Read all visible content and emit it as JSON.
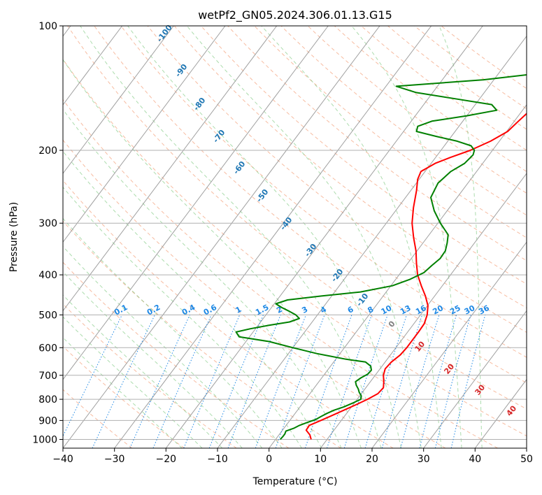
{
  "chart_data": {
    "type": "line",
    "title": "wetPf2_GN05.2024.306.01.13.G15",
    "xlabel": "Temperature (°C)",
    "ylabel": "Pressure (hPa)",
    "xlim": [
      -40,
      50
    ],
    "ylim": [
      1050,
      100
    ],
    "y_scale": "log",
    "x_ticks": [
      -40,
      -30,
      -20,
      -10,
      0,
      10,
      20,
      30,
      40,
      50
    ],
    "x_tick_labels": [
      "−40",
      "−30",
      "−20",
      "−10",
      "0",
      "10",
      "20",
      "30",
      "40",
      "50"
    ],
    "y_ticks": [
      1000,
      900,
      800,
      700,
      600,
      500,
      400,
      300,
      200,
      100
    ],
    "y_tick_labels": [
      "1000",
      "900",
      "800",
      "700",
      "600",
      "500",
      "400",
      "300",
      "200",
      "100"
    ],
    "grid": true,
    "isotherm_labels": [
      "-100",
      "-90",
      "-80",
      "-70",
      "-60",
      "-50",
      "-40",
      "-30",
      "-20",
      "-10"
    ],
    "dry_adiabat_labels": [
      "0",
      "10",
      "20",
      "30",
      "40"
    ],
    "mixing_ratio_labels": [
      "0.1",
      "0.2",
      "0.4",
      "0.6",
      "1",
      "1.5",
      "2",
      "3",
      "4",
      "6",
      "8",
      "10",
      "13",
      "16",
      "20",
      "25",
      "30",
      "36"
    ],
    "colors": {
      "temperature": "#ff0000",
      "dewpoint": "#008000",
      "isotherm": "#1f77b4",
      "dry_adiabat": "#d62728",
      "mixing_ratio": "#1e88e5"
    },
    "series": [
      {
        "name": "",
        "kind": "temperature",
        "p": [
          1000,
          975,
          950,
          925,
          900,
          875,
          850,
          825,
          800,
          775,
          750,
          725,
          700,
          675,
          650,
          625,
          600,
          575,
          550,
          525,
          500,
          475,
          450,
          425,
          400,
          375,
          350,
          325,
          300,
          275,
          250,
          235,
          225,
          215,
          208,
          200,
          190,
          180,
          170,
          160,
          150,
          140,
          130,
          120,
          110,
          100
        ],
        "t": [
          6.9,
          6.0,
          4.6,
          4.5,
          6.0,
          7.5,
          9.0,
          10.5,
          12.0,
          13.2,
          13.4,
          12.6,
          11.6,
          11.0,
          11.2,
          11.9,
          12.1,
          12.1,
          12.1,
          12.0,
          11.3,
          10.1,
          8.2,
          5.9,
          3.6,
          1.7,
          -0.2,
          -2.6,
          -5.0,
          -7.0,
          -8.9,
          -10.3,
          -10.8,
          -9.2,
          -7.1,
          -4.3,
          -1.7,
          0.2,
          0.8,
          1.5,
          4.2,
          8.1,
          11.8,
          13.4,
          15.3,
          19.6
        ]
      },
      {
        "name": "",
        "kind": "dewpoint",
        "p": [
          1000,
          985,
          970,
          955,
          940,
          925,
          910,
          895,
          880,
          865,
          850,
          835,
          815,
          800,
          785,
          770,
          755,
          740,
          725,
          710,
          695,
          680,
          665,
          650,
          640,
          620,
          600,
          580,
          565,
          550,
          540,
          530,
          520,
          510,
          500,
          490,
          480,
          470,
          460,
          450,
          440,
          425,
          410,
          395,
          380,
          365,
          350,
          335,
          320,
          300,
          280,
          260,
          240,
          225,
          215,
          205,
          200,
          195,
          190,
          185,
          180,
          175,
          170,
          165,
          160,
          155,
          150,
          145,
          140,
          135,
          130,
          125,
          120,
          115,
          110,
          105,
          100
        ],
        "t": [
          0.9,
          1.0,
          1.0,
          0.8,
          1.9,
          2.6,
          3.7,
          4.9,
          5.5,
          6.2,
          7.1,
          8.5,
          9.8,
          10.7,
          10.3,
          9.4,
          8.7,
          7.8,
          7.1,
          7.6,
          8.4,
          8.5,
          7.8,
          6.2,
          2.0,
          -4.5,
          -10.0,
          -15.5,
          -22.0,
          -23.3,
          -21.0,
          -18.0,
          -14.4,
          -13.0,
          -14.2,
          -16.0,
          -18.0,
          -19.7,
          -18.0,
          -12.0,
          -5.0,
          0.3,
          2.8,
          4.5,
          5.0,
          5.6,
          5.5,
          4.7,
          3.7,
          0.5,
          -2.5,
          -5.1,
          -5.8,
          -5.0,
          -3.5,
          -3.1,
          -3.5,
          -4.8,
          -8.2,
          -13.0,
          -17.5,
          -18.0,
          -16.0,
          -10.0,
          -5.0,
          -6.8,
          -14.8,
          -23.2,
          -28.0,
          -12.0,
          -1.5,
          0.0,
          0.7,
          1.3,
          1.4,
          2.5,
          4.2
        ]
      }
    ]
  }
}
